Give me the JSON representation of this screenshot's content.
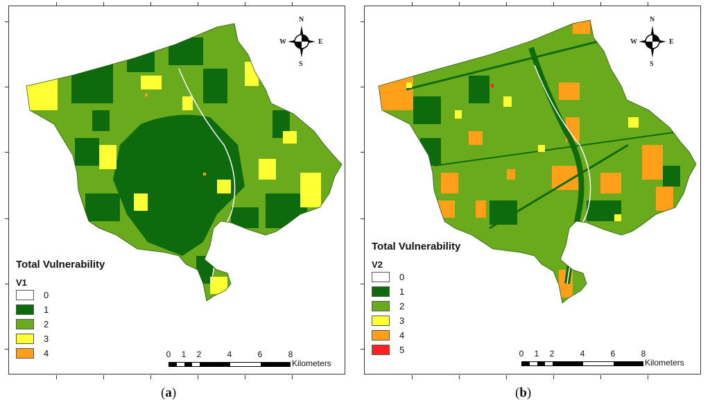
{
  "compass": {
    "n": "N",
    "s": "S",
    "e": "E",
    "w": "W"
  },
  "scale": {
    "ticks": [
      "0",
      "1",
      "2",
      "4",
      "6",
      "8"
    ],
    "unit": "Kilometers"
  },
  "colors": {
    "class0": "#ffffff",
    "class1": "#0d6b0d",
    "class2": "#6aaa1d",
    "class3": "#ffff33",
    "class4": "#ff9f1a",
    "class5": "#ff2222"
  },
  "panels": [
    {
      "caption_open": "(",
      "caption_letter": "a",
      "caption_close": ")",
      "legend_title": "Total Vulnerability",
      "legend_sub": "V1",
      "legend_items": [
        {
          "value": "0",
          "color": "#ffffff"
        },
        {
          "value": "1",
          "color": "#0d6b0d"
        },
        {
          "value": "2",
          "color": "#6aaa1d"
        },
        {
          "value": "3",
          "color": "#ffff33"
        },
        {
          "value": "4",
          "color": "#ff9f1a"
        }
      ]
    },
    {
      "caption_open": "(",
      "caption_letter": "b",
      "caption_close": ")",
      "legend_title": "Total Vulnerability",
      "legend_sub": "V2",
      "legend_items": [
        {
          "value": "0",
          "color": "#ffffff"
        },
        {
          "value": "1",
          "color": "#0d6b0d"
        },
        {
          "value": "2",
          "color": "#6aaa1d"
        },
        {
          "value": "3",
          "color": "#ffff33"
        },
        {
          "value": "4",
          "color": "#ff9f1a"
        },
        {
          "value": "5",
          "color": "#ff2222"
        }
      ]
    }
  ]
}
